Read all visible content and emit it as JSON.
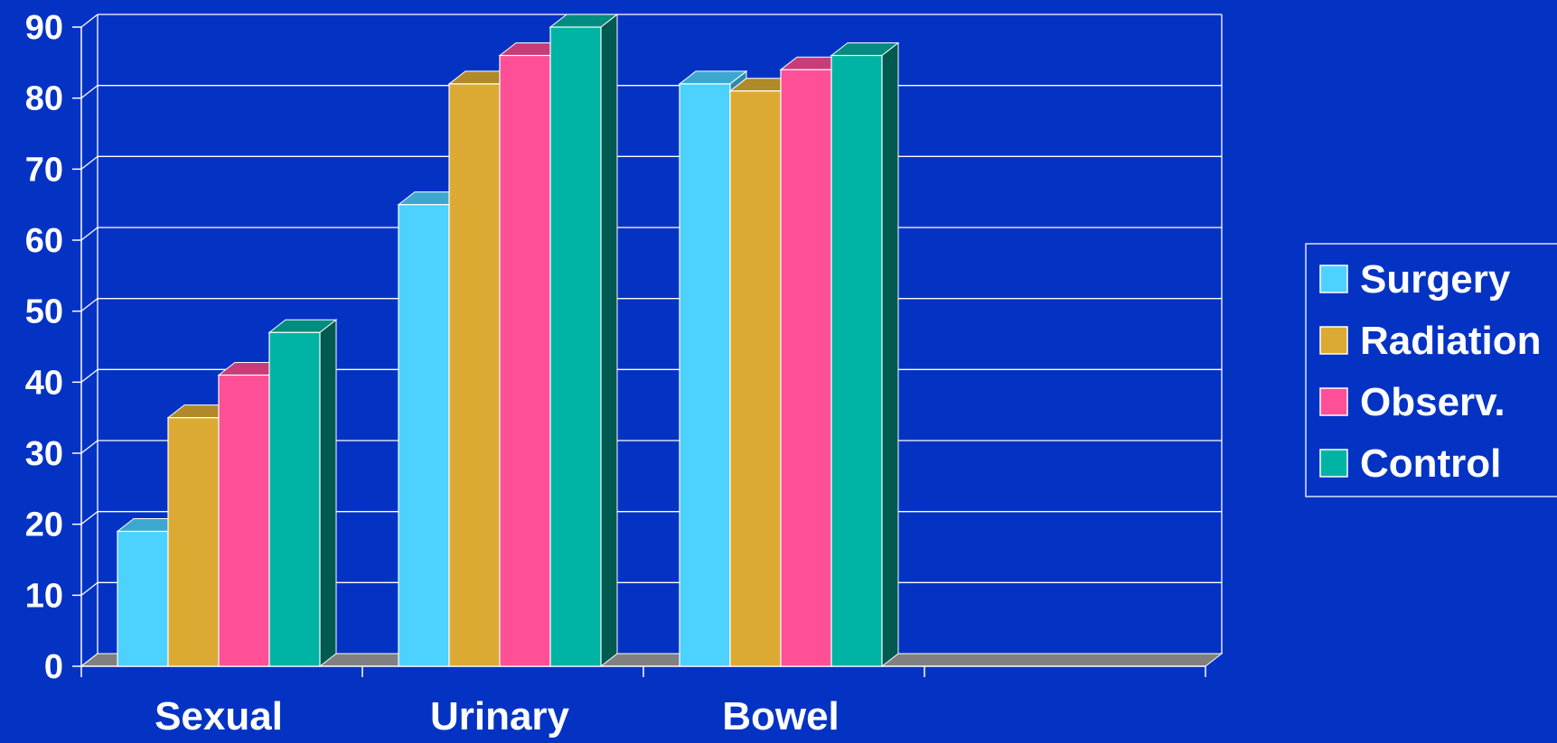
{
  "chart_data": {
    "type": "bar",
    "style": "3d-clustered-column",
    "title": "",
    "xlabel": "",
    "ylabel": "",
    "categories": [
      "Sexual",
      "Urinary",
      "Bowel"
    ],
    "series": [
      {
        "name": "Surgery",
        "values": [
          19,
          65,
          82
        ]
      },
      {
        "name": "Radiation",
        "values": [
          35,
          82,
          81
        ]
      },
      {
        "name": "Observ.",
        "values": [
          41,
          86,
          84
        ]
      },
      {
        "name": "Control",
        "values": [
          47,
          90,
          86
        ]
      }
    ],
    "ylim": [
      0,
      90
    ],
    "yticks": [
      "0",
      "10",
      "20",
      "30",
      "40",
      "50",
      "60",
      "70",
      "80",
      "90"
    ],
    "grid": true,
    "legend_position": "right",
    "colors": {
      "background": "#0433C4",
      "grid": "#FFFFFF",
      "floor": "#808080",
      "series_face": [
        "#4DD2FF",
        "#DCAA32",
        "#FF4F96",
        "#00B4A5"
      ],
      "series_top": [
        "#3CA8D0",
        "#B08A28",
        "#C83C78",
        "#008C80"
      ],
      "series_side": [
        "#2A8AB0",
        "#907020",
        "#A03060",
        "#005A50"
      ]
    }
  }
}
